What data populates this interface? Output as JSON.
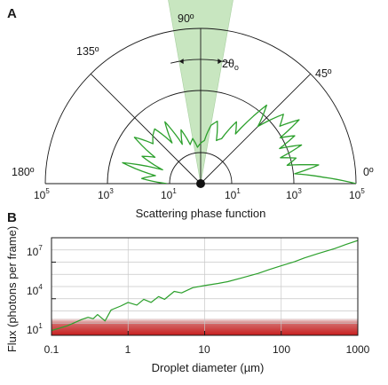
{
  "panel_a": {
    "letter": "A",
    "angle_labels": [
      "180º",
      "135º",
      "90º",
      "45º",
      "0º"
    ],
    "half_angle_label_main": "2θ",
    "half_angle_label_sub": "o",
    "xlabel": "Scattering phase function",
    "radial_ticks_left": [
      "10",
      "10",
      "10"
    ],
    "radial_ticks_right": [
      "10",
      "10",
      "10"
    ],
    "radial_exponents_left": [
      "5",
      "3",
      "1"
    ],
    "radial_exponents_right": [
      "1",
      "3",
      "5"
    ]
  },
  "panel_b": {
    "letter": "B",
    "ylabel": "Flux (photons per frame)",
    "xlabel": "Droplet diameter  (µm)"
  },
  "colors": {
    "series": "#2ca02c",
    "cone_fill": "#c8e6c0",
    "band": "#c81e1e"
  },
  "chart_data": [
    {
      "type": "line",
      "subtype": "polar",
      "panel": "A",
      "angular_range_deg": [
        0,
        180
      ],
      "radial_scale": "log",
      "radial_range": [
        1,
        100000
      ],
      "radial_circles": [
        10,
        1000,
        100000
      ],
      "radial_lines_deg": [
        45,
        90,
        135
      ],
      "cone_center_deg": 90,
      "cone_half_width_deg": 10,
      "series": [
        {
          "theta_deg": [
            0,
            3,
            6,
            9,
            12,
            15,
            18,
            21,
            24,
            27,
            30,
            33,
            36,
            40,
            45,
            50,
            55,
            60,
            65,
            70,
            75,
            80,
            85,
            90,
            95,
            100,
            105,
            110,
            115,
            120,
            125,
            130,
            135,
            140,
            145,
            150,
            155,
            160,
            165,
            170,
            175,
            180
          ],
          "intensity": [
            100000,
            9000,
            1100,
            7000,
            700,
            1500,
            500,
            3000,
            600,
            2500,
            900,
            6000,
            1400,
            3000,
            400,
            2000,
            90,
            200,
            40,
            30,
            120,
            80,
            25,
            20,
            15,
            30,
            20,
            70,
            25,
            200,
            40,
            200,
            150,
            100,
            400,
            50,
            120,
            20,
            400,
            30,
            80,
            12
          ]
        }
      ]
    },
    {
      "type": "line",
      "panel": "B",
      "xscale": "log",
      "yscale": "log",
      "xlim": [
        0.1,
        1000
      ],
      "ylim": [
        10,
        1000000000
      ],
      "xticks": [
        "0.1",
        "1",
        "10",
        "100",
        "1000"
      ],
      "yticks": [
        {
          "base": "10",
          "exp": "1"
        },
        {
          "base": "10",
          "exp": "4"
        },
        {
          "base": "10",
          "exp": "7"
        }
      ],
      "grid": true,
      "band": {
        "y_from": 10,
        "y_to": 250
      },
      "series": [
        {
          "x": [
            0.1,
            0.13,
            0.16,
            0.2,
            0.25,
            0.3,
            0.35,
            0.4,
            0.5,
            0.6,
            0.8,
            1,
            1.3,
            1.6,
            2,
            2.5,
            3,
            4,
            5,
            7,
            10,
            15,
            20,
            30,
            50,
            70,
            100,
            150,
            200,
            300,
            500,
            700,
            1000
          ],
          "y": [
            25,
            40,
            60,
            110,
            200,
            300,
            230,
            500,
            150,
            1200,
            2500,
            5000,
            3000,
            9000,
            5000,
            15000,
            9000,
            40000,
            30000,
            80000,
            120000,
            180000,
            250000,
            500000,
            1200000,
            2500000,
            5000000,
            11000000,
            22000000,
            50000000,
            130000000,
            280000000,
            600000000
          ]
        }
      ]
    }
  ]
}
